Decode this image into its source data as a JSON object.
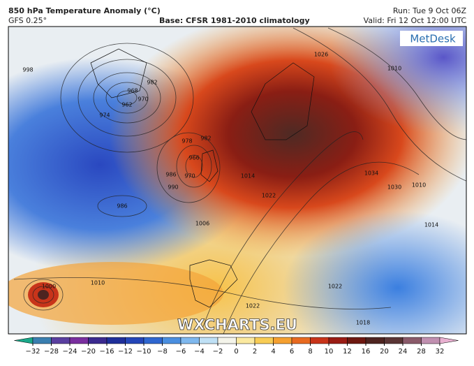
{
  "header": {
    "title": "850 hPa Temperature Anomaly (°C)",
    "model": "GFS 0.25°",
    "base": "Base: CFSR 1981-2010 climatology",
    "run": "Run: Tue 9 Oct 06Z",
    "valid": "Valid: Fri 12 Oct 12:00 UTC"
  },
  "logo": "MetDesk",
  "watermark": "WXCHARTS.EU",
  "isobar_labels": [
    "998",
    "982",
    "962",
    "968",
    "970",
    "974",
    "978",
    "982",
    "966",
    "970",
    "986",
    "990",
    "986",
    "1006",
    "1014",
    "1022",
    "1010",
    "1010",
    "1000",
    "1026",
    "1010",
    "1034",
    "1030",
    "1014",
    "1022",
    "1022",
    "1018"
  ],
  "colorbar": {
    "ticks": [
      {
        "value": -32,
        "label": "−32"
      },
      {
        "value": -28,
        "label": "−28"
      },
      {
        "value": -24,
        "label": "−24"
      },
      {
        "value": -20,
        "label": "−20"
      },
      {
        "value": -16,
        "label": "−16"
      },
      {
        "value": -12,
        "label": "−12"
      },
      {
        "value": -10,
        "label": "−10"
      },
      {
        "value": -8,
        "label": "−8"
      },
      {
        "value": -6,
        "label": "−6"
      },
      {
        "value": -4,
        "label": "−4"
      },
      {
        "value": -2,
        "label": "−2"
      },
      0,
      2,
      4,
      6,
      8,
      10,
      12,
      16,
      20,
      24,
      28,
      32
    ],
    "colors": [
      "#1aa88a",
      "#3a7fb0",
      "#5a3fa0",
      "#7a2f9f",
      "#3b2a8f",
      "#1f2f9a",
      "#2446b8",
      "#2f67d0",
      "#4a8fe0",
      "#7fb8ee",
      "#bfe0f5",
      "#f4f4ea",
      "#fbe9a0",
      "#f8cc55",
      "#f5a030",
      "#e86a20",
      "#c8341a",
      "#9a1c14",
      "#6e1810",
      "#4e2420",
      "#5a3535",
      "#8a5a6a",
      "#c090b0",
      "#e8b0d0"
    ]
  }
}
